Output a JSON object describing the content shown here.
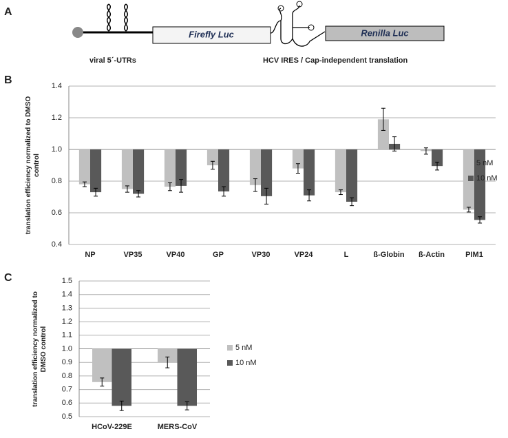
{
  "panels": [
    "A",
    "B",
    "C"
  ],
  "diagram": {
    "firefly": "Firefly Luc",
    "renilla": "Renilla Luc",
    "utr_label": "viral 5´-UTRs",
    "ires_label": "HCV IRES / Cap-independent translation"
  },
  "chart_data": [
    {
      "type": "bar",
      "ylabel": "translation efficiency normalized to DMSO control",
      "categories": [
        "NP",
        "VP35",
        "VP40",
        "GP",
        "VP30",
        "VP24",
        "L",
        "ß-Globin",
        "ß-Actin",
        "PIM1"
      ],
      "series": [
        {
          "name": "5 nM",
          "color": "#c0c0c0",
          "values": [
            0.78,
            0.75,
            0.765,
            0.9,
            0.775,
            0.88,
            0.73,
            1.19,
            0.99,
            0.62
          ],
          "errors": [
            0.015,
            0.02,
            0.025,
            0.025,
            0.04,
            0.03,
            0.015,
            0.07,
            0.02,
            0.015
          ]
        },
        {
          "name": "10 nM",
          "color": "#595959",
          "values": [
            0.73,
            0.72,
            0.77,
            0.735,
            0.705,
            0.71,
            0.67,
            1.035,
            0.895,
            0.555
          ],
          "errors": [
            0.025,
            0.02,
            0.04,
            0.03,
            0.05,
            0.035,
            0.025,
            0.045,
            0.025,
            0.02
          ]
        }
      ],
      "baseline": {
        "value": 1,
        "label": "1.0"
      },
      "ylim": [
        0.4,
        1.4
      ],
      "yticks": [
        0.4,
        0.6,
        0.8,
        {
          "value": 1,
          "label": "1.0"
        },
        1.2,
        1.4
      ],
      "grid": true,
      "legend": "right"
    },
    {
      "type": "bar",
      "ylabel": "translation efficiency normalized to DMSO control",
      "categories": [
        "HCoV-229E",
        "MERS-CoV"
      ],
      "series": [
        {
          "name": "5 nM",
          "color": "#c0c0c0",
          "values": [
            0.755,
            0.9
          ],
          "errors": [
            0.03,
            0.04
          ]
        },
        {
          "name": "10 nM",
          "color": "#595959",
          "values": [
            0.58,
            0.58
          ],
          "errors": [
            0.035,
            0.03
          ]
        }
      ],
      "baseline": {
        "value": 1,
        "label": "1.0"
      },
      "ylim": [
        0.5,
        1.5
      ],
      "yticks": [
        0.5,
        0.6,
        0.7,
        0.8,
        0.9,
        {
          "value": 1,
          "label": "1.0"
        },
        1.1,
        1.2,
        1.3,
        1.4,
        1.5
      ],
      "grid": true,
      "legend": "right"
    }
  ]
}
